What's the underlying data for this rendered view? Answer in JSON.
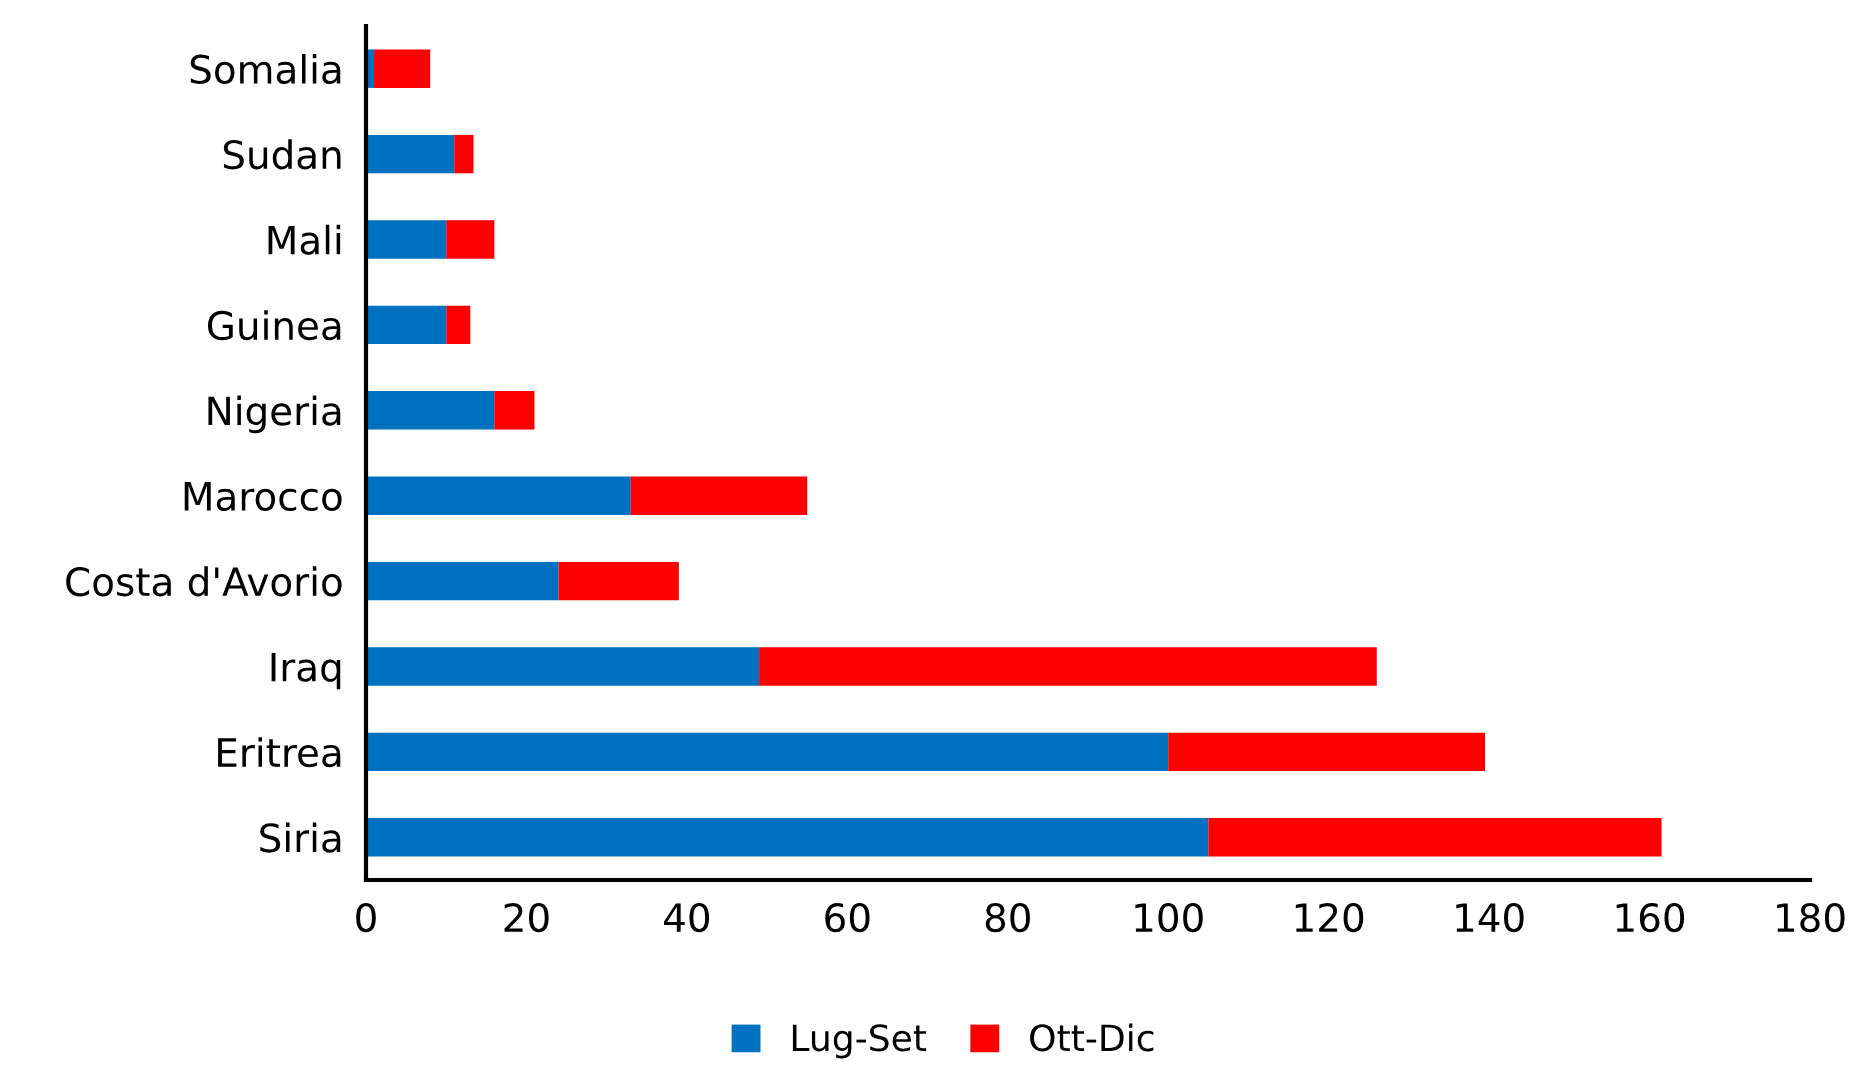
{
  "chart_data": {
    "type": "bar",
    "orientation": "horizontal",
    "stacked": true,
    "categories": [
      "Somalia",
      "Sudan",
      "Mali",
      "Guinea",
      "Nigeria",
      "Marocco",
      "Costa d'Avorio",
      "Iraq",
      "Eritrea",
      "Siria"
    ],
    "series": [
      {
        "name": "Lug-Set",
        "color": "#0070c0",
        "values": [
          1,
          11,
          10,
          10,
          16,
          33,
          24,
          49,
          100,
          105
        ]
      },
      {
        "name": "Ott-Dic",
        "color": "#ff0000",
        "values": [
          7,
          2.4,
          6,
          3,
          5,
          22,
          15,
          77,
          39.5,
          56.5
        ]
      }
    ],
    "xlim": [
      0,
      180
    ],
    "xticks": [
      0,
      20,
      40,
      60,
      80,
      100,
      120,
      140,
      160,
      180
    ],
    "grid": false,
    "legend": "bottom"
  }
}
